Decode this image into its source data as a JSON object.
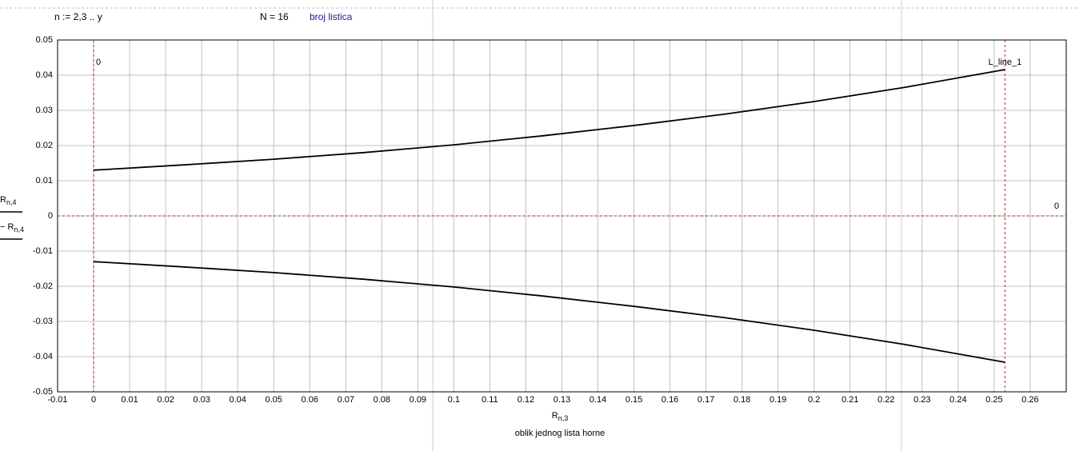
{
  "header": {
    "range_def": "n := 2,3 .. y",
    "n_def": "N = 16",
    "comment": "broj listica"
  },
  "chart_data": {
    "type": "line",
    "x_label": {
      "text": "R",
      "sub": "n,3"
    },
    "subtitle": "oblik jednog lista horne",
    "y_labels": [
      {
        "text": "R",
        "sub": "n,4"
      },
      {
        "text": "− R",
        "sub": "n,4"
      }
    ],
    "x": [
      0,
      0.025,
      0.05,
      0.075,
      0.1,
      0.125,
      0.15,
      0.175,
      0.2,
      0.225,
      0.253
    ],
    "series": [
      {
        "color": "#000000",
        "values": [
          0.013,
          0.0145,
          0.0161,
          0.018,
          0.0202,
          0.0228,
          0.0257,
          0.0289,
          0.0325,
          0.0365,
          0.0416
        ]
      },
      {
        "color": "#000000",
        "values": [
          -0.013,
          -0.0145,
          -0.0161,
          -0.018,
          -0.0202,
          -0.0228,
          -0.0257,
          -0.0289,
          -0.0325,
          -0.0365,
          -0.0416
        ]
      }
    ],
    "xlim": [
      -0.01,
      0.27
    ],
    "ylim": [
      -0.05,
      0.05
    ],
    "xticks": [
      -0.01,
      0,
      0.01,
      0.02,
      0.03,
      0.04,
      0.05,
      0.06,
      0.07,
      0.08,
      0.09,
      0.1,
      0.11,
      0.12,
      0.13,
      0.14,
      0.15,
      0.16,
      0.17,
      0.18,
      0.19,
      0.2,
      0.21,
      0.22,
      0.23,
      0.24,
      0.25,
      0.26
    ],
    "yticks": [
      0.05,
      0.04,
      0.03,
      0.02,
      0.01,
      0,
      -0.01,
      -0.02,
      -0.03,
      -0.04,
      -0.05
    ],
    "grid": true,
    "x_markers": [
      0,
      {
        "value": 0.253,
        "label": "L_line_1"
      }
    ],
    "y_markers": [
      0
    ],
    "marker_color": "#b03020"
  }
}
